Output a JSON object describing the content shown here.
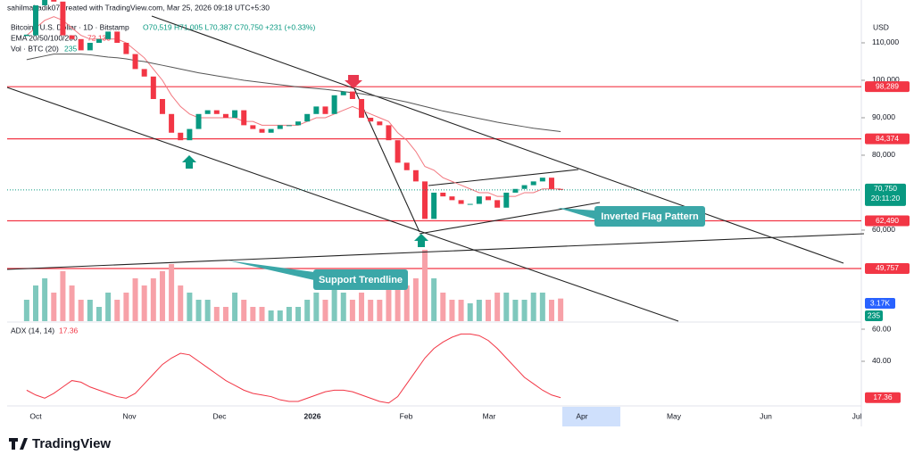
{
  "chart_data": {
    "type": "candlestick",
    "watermark": "sahilmahadik07 created with TradingView.com, Mar 25, 2026 09:18 UTC+5:30",
    "title": "Bitcoin / U.S. Dollar · 1D · Bitstamp",
    "ohlc": "O70,519 H71,005 L70,387 C70,750 +231 (+0.33%)",
    "ema_title": "EMA 20/50/100/200",
    "ema_value": "72,133",
    "currency": "USD",
    "up_color": "#089981",
    "down_color": "#f23645",
    "x_labels": [
      "Oct",
      "Nov",
      "Dec",
      "2026",
      "Feb",
      "Mar",
      "Apr",
      "May",
      "Jun",
      "Jul"
    ],
    "closes": [
      112000,
      120000,
      122000,
      121000,
      112000,
      111000,
      108000,
      110000,
      111000,
      113000,
      110000,
      107000,
      103000,
      101000,
      95000,
      91000,
      86000,
      84000,
      87000,
      91000,
      92000,
      91000,
      90000,
      92000,
      88000,
      87000,
      86000,
      87000,
      88000,
      88000,
      89000,
      91000,
      93000,
      91000,
      96000,
      97000,
      95000,
      90000,
      89000,
      88000,
      84000,
      78000,
      76000,
      73000,
      63000,
      70000,
      69000,
      68000,
      67000,
      67000,
      69000,
      68000,
      66000,
      70000,
      71000,
      72000,
      73000,
      74000,
      71000,
      70750
    ],
    "series": [
      {
        "name": "EMA 20",
        "color": "#f2777f",
        "values": [
          112000,
          114000,
          116000,
          117000,
          116000,
          114000,
          112000,
          111000,
          111000,
          111000,
          111000,
          110000,
          108000,
          106000,
          103000,
          100000,
          96000,
          93000,
          91000,
          90000,
          90000,
          90000,
          90000,
          90000,
          89000,
          89000,
          88000,
          88000,
          88000,
          88000,
          88000,
          89000,
          90000,
          90000,
          91000,
          92000,
          93000,
          92000,
          91000,
          90000,
          89000,
          86000,
          84000,
          81000,
          77000,
          76000,
          74000,
          73000,
          72000,
          71000,
          70000,
          70000,
          69000,
          69000,
          69000,
          70000,
          70000,
          71000,
          71000,
          71000
        ]
      },
      {
        "name": "EMA 200",
        "color": "#555555",
        "values": [
          105500,
          106000,
          106500,
          107000,
          107000,
          107000,
          107000,
          106800,
          106500,
          106200,
          106000,
          105700,
          105300,
          105000,
          104500,
          104000,
          103500,
          103000,
          102500,
          102000,
          101600,
          101200,
          100800,
          100400,
          100000,
          99700,
          99400,
          99100,
          98800,
          98500,
          98200,
          98000,
          97800,
          97600,
          97300,
          97000,
          96700,
          96400,
          96000,
          95600,
          95200,
          94700,
          94200,
          93600,
          93000,
          92400,
          91800,
          91300,
          90800,
          90300,
          89800,
          89300,
          88800,
          88400,
          88000,
          87600,
          87200,
          86900,
          86600,
          86300
        ]
      }
    ],
    "ylim": [
      35700,
      120240
    ],
    "yticks": [
      {
        "value": 110000,
        "label": "110,000"
      },
      {
        "value": 100000,
        "label": "100,000"
      },
      {
        "value": 90000,
        "label": "90,000"
      },
      {
        "value": 80000,
        "label": "80,000"
      },
      {
        "value": 60000,
        "label": "60,000"
      }
    ],
    "levels": [
      {
        "value": 98289,
        "label": "98,289"
      },
      {
        "value": 84374,
        "label": "84,374"
      },
      {
        "value": 62490,
        "label": "62,490"
      },
      {
        "value": 49757,
        "label": "49,757"
      }
    ],
    "level_color": "#f23645",
    "last_price": {
      "value": 70750,
      "label": "70,750"
    },
    "countdown": "20:11:20",
    "annotations": [
      "Inverted Flag Pattern",
      "Support Trendline"
    ],
    "volume": {
      "title": "Vol · BTC (20)",
      "ma_label": "235",
      "last_label": "3.17K",
      "values": [
        3,
        5,
        6,
        4,
        7,
        5,
        3,
        3,
        2,
        4,
        3,
        4,
        6,
        5,
        6,
        7,
        8,
        5,
        4,
        3,
        3,
        2,
        2,
        4,
        3,
        2,
        2,
        1.5,
        1.5,
        2,
        2,
        3,
        4,
        3,
        5,
        4,
        3,
        4,
        3,
        3,
        5,
        6,
        5,
        6,
        10,
        6,
        4,
        3,
        3,
        2.5,
        3,
        3,
        4,
        4,
        3,
        3,
        4,
        4,
        3,
        3.17
      ]
    },
    "adx": {
      "title": "ADX (14, 14)",
      "value_label": "17.36",
      "color": "#f23645",
      "ylim": [
        12.2,
        63.9
      ],
      "yticks": [
        {
          "value": 60,
          "label": "60.00"
        },
        {
          "value": 40,
          "label": "40.00"
        }
      ],
      "values": [
        22,
        19,
        17,
        20,
        24,
        28,
        27,
        24,
        22,
        20,
        18,
        17,
        20,
        26,
        32,
        38,
        42,
        45,
        44,
        40,
        36,
        32,
        28,
        25,
        22,
        20,
        19,
        18,
        16,
        15,
        15,
        17,
        19,
        21,
        22,
        22,
        21,
        19,
        17,
        15,
        14,
        18,
        26,
        34,
        42,
        48,
        52,
        55,
        57,
        57,
        56,
        53,
        48,
        42,
        36,
        30,
        26,
        22,
        19,
        17.36
      ]
    },
    "footer": "TradingView"
  }
}
